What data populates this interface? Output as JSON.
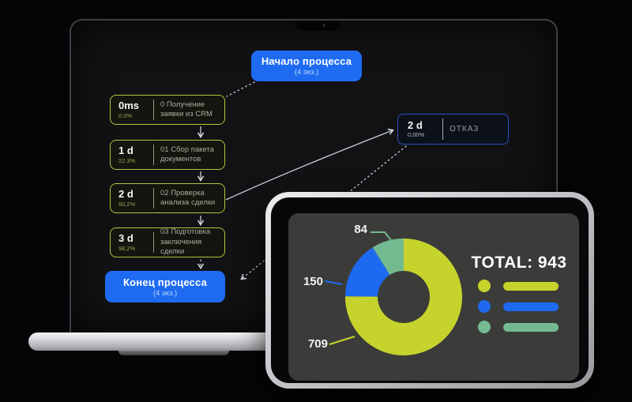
{
  "flow": {
    "start": {
      "title": "Начало процесса",
      "subtitle": "(4 экз.)"
    },
    "steps": [
      {
        "time": "0ms",
        "percent": "0.0%",
        "label": "0 Получение заявки из CRM"
      },
      {
        "time": "1 d",
        "percent": "22.3%",
        "label": "01 Сбор пакета документов"
      },
      {
        "time": "2 d",
        "percent": "50,2%",
        "label": "02 Проверка анализа сделки"
      },
      {
        "time": "3 d",
        "percent": "98,2%",
        "label": "03 Подготовка заключения сделки"
      }
    ],
    "reject": {
      "time": "2 d",
      "percent": "0,00%",
      "label": "ОТКАЗ"
    },
    "end": {
      "title": "Конец процесса",
      "subtitle": "(4 экз.)"
    }
  },
  "chart_data": {
    "type": "pie",
    "subtype": "donut",
    "title": "TOTAL: 943",
    "total": 943,
    "slices": [
      {
        "label": "709",
        "value": 709,
        "color": "#c6d32c"
      },
      {
        "label": "150",
        "value": 150,
        "color": "#1d6af0"
      },
      {
        "label": "84",
        "value": 84,
        "color": "#74ba90"
      }
    ],
    "start_angle_deg": 0,
    "direction": "clockwise",
    "legend_position": "right"
  },
  "colors": {
    "accent_blue": "#1e6bf2",
    "step_border": "#b5c33b",
    "reject_border": "#2b51c9",
    "connector_line": "#c7ced8"
  }
}
